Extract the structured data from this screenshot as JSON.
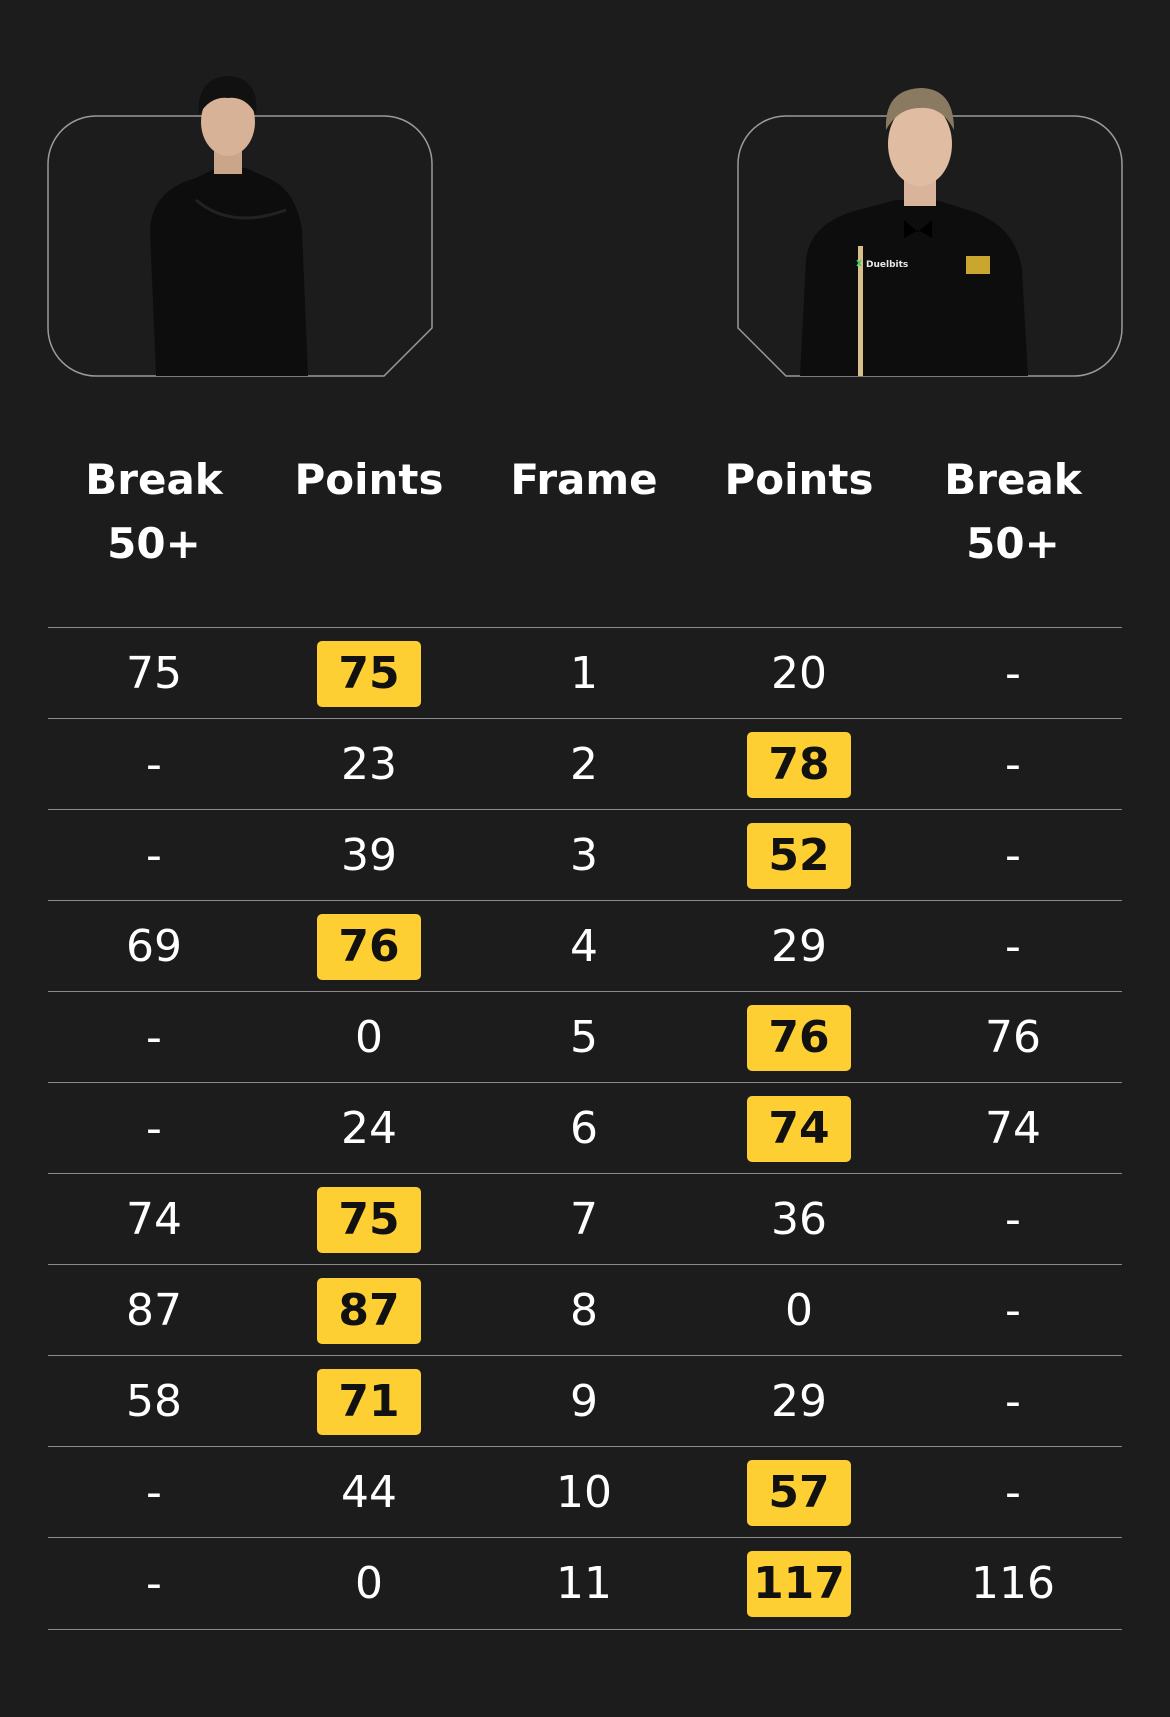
{
  "players": {
    "left": {
      "photo": "player-left-portrait"
    },
    "right": {
      "photo": "player-right-portrait",
      "shirt_sponsor": "Duelbits"
    }
  },
  "headers": {
    "left_break": "Break\n50+",
    "left_break_line1": "Break",
    "left_break_line2": "50+",
    "left_points": "Points",
    "frame": "Frame",
    "right_points": "Points",
    "right_break_line1": "Break",
    "right_break_line2": "50+"
  },
  "accent_color": "#fdcf33",
  "rows": [
    {
      "left_break": "75",
      "left_points": "75",
      "frame": "1",
      "right_points": "20",
      "right_break": "-",
      "winner": "left"
    },
    {
      "left_break": "-",
      "left_points": "23",
      "frame": "2",
      "right_points": "78",
      "right_break": "-",
      "winner": "right"
    },
    {
      "left_break": "-",
      "left_points": "39",
      "frame": "3",
      "right_points": "52",
      "right_break": "-",
      "winner": "right"
    },
    {
      "left_break": "69",
      "left_points": "76",
      "frame": "4",
      "right_points": "29",
      "right_break": "-",
      "winner": "left"
    },
    {
      "left_break": "-",
      "left_points": "0",
      "frame": "5",
      "right_points": "76",
      "right_break": "76",
      "winner": "right"
    },
    {
      "left_break": "-",
      "left_points": "24",
      "frame": "6",
      "right_points": "74",
      "right_break": "74",
      "winner": "right"
    },
    {
      "left_break": "74",
      "left_points": "75",
      "frame": "7",
      "right_points": "36",
      "right_break": "-",
      "winner": "left"
    },
    {
      "left_break": "87",
      "left_points": "87",
      "frame": "8",
      "right_points": "0",
      "right_break": "-",
      "winner": "left"
    },
    {
      "left_break": "58",
      "left_points": "71",
      "frame": "9",
      "right_points": "29",
      "right_break": "-",
      "winner": "left"
    },
    {
      "left_break": "-",
      "left_points": "44",
      "frame": "10",
      "right_points": "57",
      "right_break": "-",
      "winner": "right"
    },
    {
      "left_break": "-",
      "left_points": "0",
      "frame": "11",
      "right_points": "117",
      "right_break": "116",
      "winner": "right"
    }
  ]
}
